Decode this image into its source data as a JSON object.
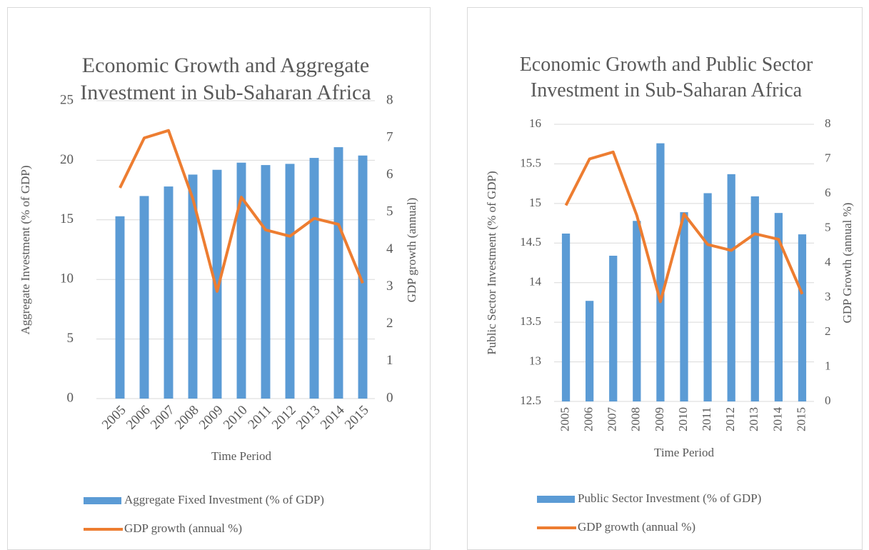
{
  "chart_data": [
    {
      "type": "combo",
      "title": "Economic Growth and Aggregate Investment in Sub-Saharan Africa",
      "x_label": "Time Period",
      "y_label": "Aggregate Investment (% of GDP)",
      "y2_label": "GDP growth (annual)",
      "categories": [
        "2005",
        "2006",
        "2007",
        "2008",
        "2009",
        "2010",
        "2011",
        "2012",
        "2013",
        "2014",
        "2015"
      ],
      "xtick_rotation": -45,
      "series": [
        {
          "name": "Aggregate Fixed Investment (% of GDP)",
          "type": "bar",
          "color": "#5b9bd5",
          "values": [
            15.3,
            17.0,
            17.8,
            18.8,
            19.2,
            19.8,
            19.6,
            19.7,
            20.2,
            21.1,
            20.4
          ]
        },
        {
          "name": "GDP growth (annual %)",
          "type": "line",
          "axis": "y2",
          "color": "#ed7d31",
          "values": [
            5.66,
            7.0,
            7.2,
            5.37,
            2.88,
            5.41,
            4.53,
            4.36,
            4.84,
            4.68,
            3.1
          ]
        }
      ],
      "ylim": [
        0,
        25
      ],
      "yticks": [
        0,
        5,
        10,
        15,
        20,
        25
      ],
      "y2lim": [
        0,
        8
      ],
      "y2ticks": [
        0,
        1,
        2,
        3,
        4,
        5,
        6,
        7,
        8
      ],
      "grid": true,
      "legend": "bottom"
    },
    {
      "type": "combo",
      "title": "Economic Growth and Public Sector Investment in Sub-Saharan Africa",
      "x_label": "Time Period",
      "y_label": "Public Sector Investment (% of GDP)",
      "y2_label": "GDP Growth (annual %)",
      "categories": [
        "2005",
        "2006",
        "2007",
        "2008",
        "2009",
        "2010",
        "2011",
        "2012",
        "2013",
        "2014",
        "2015"
      ],
      "xtick_rotation": -90,
      "series": [
        {
          "name": "Public Sector Investment (% of GDP)",
          "type": "bar",
          "color": "#5b9bd5",
          "values": [
            14.62,
            13.77,
            14.34,
            14.78,
            15.76,
            14.89,
            15.13,
            15.37,
            15.09,
            14.88,
            14.61
          ]
        },
        {
          "name": "GDP growth (annual %)",
          "type": "line",
          "axis": "y2",
          "color": "#ed7d31",
          "values": [
            5.66,
            7.0,
            7.2,
            5.37,
            2.88,
            5.41,
            4.53,
            4.36,
            4.84,
            4.68,
            3.1
          ]
        }
      ],
      "ylim": [
        12.5,
        16
      ],
      "yticks": [
        12.5,
        13,
        13.5,
        14,
        14.5,
        15,
        15.5,
        16
      ],
      "y2lim": [
        0,
        8
      ],
      "y2ticks": [
        0,
        1,
        2,
        3,
        4,
        5,
        6,
        7,
        8
      ],
      "grid": true,
      "legend": "bottom"
    }
  ]
}
